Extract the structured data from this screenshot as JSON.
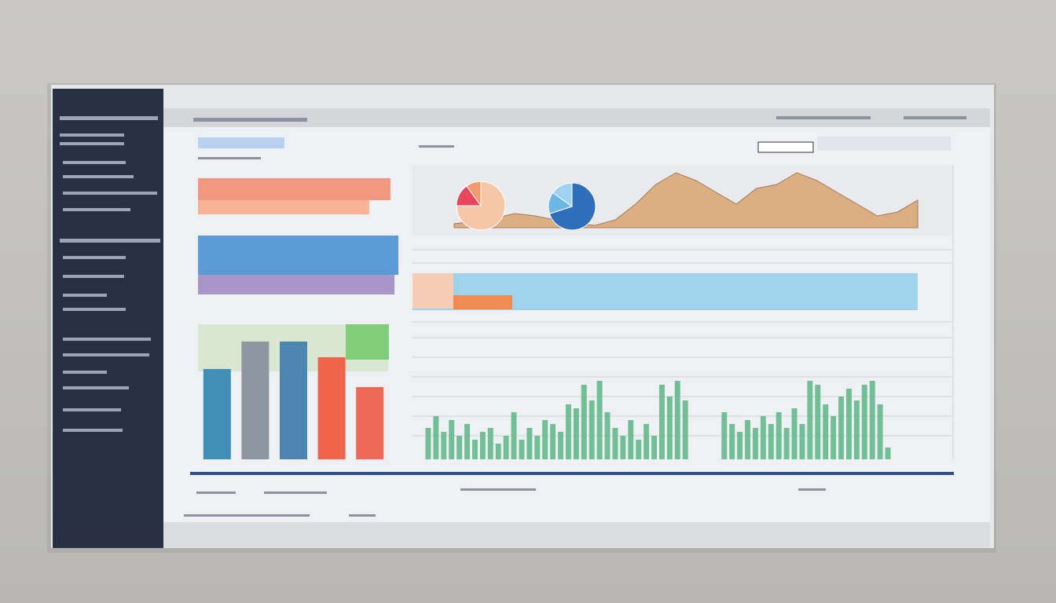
{
  "chart_data": [
    {
      "type": "bar",
      "values": [
        115,
        150,
        150,
        130,
        92
      ],
      "colors": [
        "#3f8fb8",
        "#8e979f",
        "#4a86b0",
        "#f0644e",
        "#ef6a55"
      ],
      "ylim": [
        0,
        160
      ]
    },
    {
      "type": "area",
      "values": [
        5,
        8,
        12,
        18,
        15,
        10,
        5,
        3,
        10,
        30,
        55,
        70,
        60,
        45,
        30,
        50,
        55,
        70,
        60,
        45,
        30,
        15,
        20,
        35
      ],
      "color": "#dcae84",
      "ylim": [
        0,
        80
      ]
    },
    {
      "type": "pie",
      "values": [
        75,
        15,
        10
      ],
      "colors": [
        "#f5c7a6",
        "#e8465c",
        "#f19a6b"
      ]
    },
    {
      "type": "pie",
      "values": [
        70,
        15,
        15
      ],
      "colors": [
        "#2d6fba",
        "#6bb8e8",
        "#9fd2f2"
      ]
    },
    {
      "type": "bar",
      "values": [
        40,
        55,
        35,
        50,
        30,
        45,
        25,
        35,
        40,
        20,
        30,
        60,
        25,
        40,
        30,
        50,
        45,
        35,
        70,
        65,
        95,
        75,
        100,
        60,
        40,
        30,
        50,
        25,
        45,
        30,
        95,
        80,
        100,
        75,
        null,
        null,
        null,
        null,
        60,
        45,
        35,
        50,
        40,
        55,
        45,
        60,
        40,
        65,
        45,
        100,
        95,
        70,
        55,
        80,
        90,
        75,
        95,
        100,
        70,
        15
      ],
      "color": "#5cb585",
      "ylim": [
        0,
        105
      ]
    }
  ]
}
